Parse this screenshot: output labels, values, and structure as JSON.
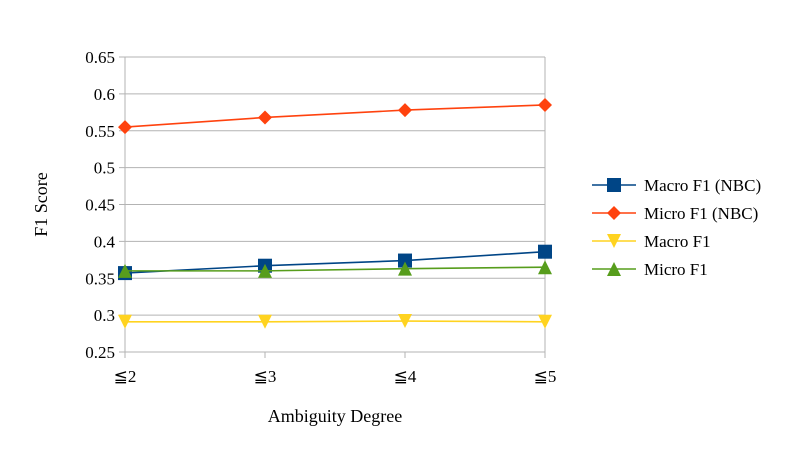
{
  "chart_data": {
    "type": "line",
    "title": "",
    "xlabel": "Ambiguity Degree",
    "ylabel": "F1 Score",
    "categories": [
      "≦2",
      "≦3",
      "≦4",
      "≦5"
    ],
    "ylim": [
      0.25,
      0.65
    ],
    "yticks": [
      "0.25",
      "0.3",
      "0.35",
      "0.4",
      "0.45",
      "0.5",
      "0.55",
      "0.6",
      "0.65"
    ],
    "grid": true,
    "legend_position": "right",
    "series": [
      {
        "name": "Macro F1 (NBC)",
        "values": [
          0.357,
          0.367,
          0.374,
          0.386
        ],
        "color": "#004586",
        "marker": "square"
      },
      {
        "name": "Micro F1 (NBC)",
        "values": [
          0.555,
          0.568,
          0.578,
          0.585
        ],
        "color": "#ff420e",
        "marker": "diamond"
      },
      {
        "name": "Macro F1",
        "values": [
          0.291,
          0.291,
          0.292,
          0.291
        ],
        "color": "#ffd320",
        "marker": "triangle-down"
      },
      {
        "name": "Micro F1",
        "values": [
          0.36,
          0.36,
          0.363,
          0.365
        ],
        "color": "#579d1c",
        "marker": "triangle-up"
      }
    ]
  }
}
